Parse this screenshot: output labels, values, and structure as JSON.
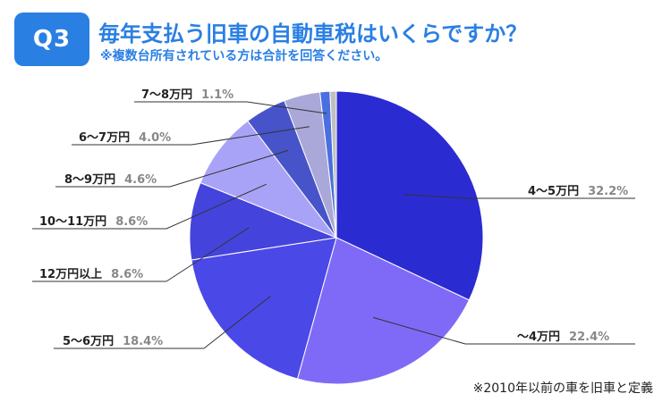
{
  "header": {
    "badge": "Q3",
    "title": "毎年支払う旧車の自動車税はいくらですか？",
    "subtitle": "※複数台所有されている方は合計を回答ください。"
  },
  "footnote": "※2010年以前の車を旧車と定義",
  "chart_data": {
    "type": "pie",
    "title": "毎年支払う旧車の自動車税はいくらですか？",
    "slices": [
      {
        "label": "4～5万円",
        "value": 32.2,
        "display": "32.2%",
        "color": "#2b2bd2",
        "side": "right"
      },
      {
        "label": "～4万円",
        "value": 22.4,
        "display": "22.4%",
        "color": "#7f6af8",
        "side": "right"
      },
      {
        "label": "5～6万円",
        "value": 18.4,
        "display": "18.4%",
        "color": "#4b48e8",
        "side": "left"
      },
      {
        "label": "12万円以上",
        "value": 8.6,
        "display": "8.6%",
        "color": "#4444dd",
        "side": "left"
      },
      {
        "label": "10～11万円",
        "value": 8.6,
        "display": "8.6%",
        "color": "#a9a3f7",
        "side": "left"
      },
      {
        "label": "8～9万円",
        "value": 4.6,
        "display": "4.6%",
        "color": "#4754c9",
        "side": "left"
      },
      {
        "label": "6～7万円",
        "value": 4.0,
        "display": "4.0%",
        "color": "#aaa8d8",
        "side": "left"
      },
      {
        "label": "7～8万円",
        "value": 1.1,
        "display": "1.1%",
        "color": "#4a6fe0",
        "side": "left"
      },
      {
        "label": "",
        "value": 0.7,
        "display": "",
        "color": "#c0c0c0",
        "side": "none"
      }
    ]
  }
}
